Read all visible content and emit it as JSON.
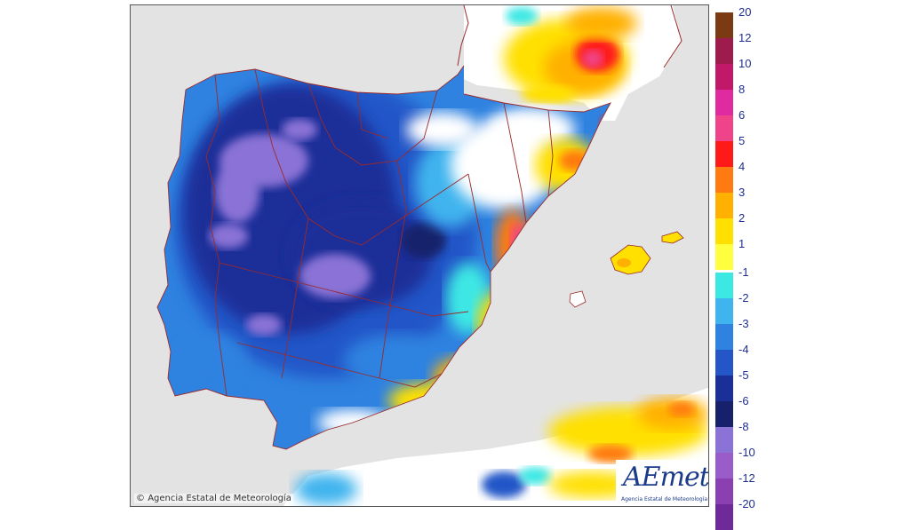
{
  "map": {
    "copyright": "Agencia Estatal de Meteorología",
    "logo_text": "AEmet",
    "logo_subtitle": "Agencia Estatal de Meteorología"
  },
  "legend": {
    "positive": [
      {
        "label": "20",
        "color": "#7b3a12"
      },
      {
        "label": "12",
        "color": "#9e1b4e"
      },
      {
        "label": "10",
        "color": "#c2186a"
      },
      {
        "label": "8",
        "color": "#e02aa0"
      },
      {
        "label": "6",
        "color": "#f0448a"
      },
      {
        "label": "5",
        "color": "#ff1a1a"
      },
      {
        "label": "4",
        "color": "#ff7a10"
      },
      {
        "label": "3",
        "color": "#ffb000"
      },
      {
        "label": "2",
        "color": "#ffe000"
      },
      {
        "label": "1",
        "color": "#ffff40"
      }
    ],
    "negative": [
      {
        "label": "-1",
        "color": "#3ce8e4"
      },
      {
        "label": "-2",
        "color": "#40b4ee"
      },
      {
        "label": "-3",
        "color": "#2f82e0"
      },
      {
        "label": "-4",
        "color": "#2456c8"
      },
      {
        "label": "-5",
        "color": "#1a2f98"
      },
      {
        "label": "-6",
        "color": "#17206a"
      },
      {
        "label": "-8",
        "color": "#8a72d6"
      },
      {
        "label": "-10",
        "color": "#9a5cc8"
      },
      {
        "label": "-12",
        "color": "#8a40b0"
      },
      {
        "label": "-20",
        "color": "#6e2a98"
      }
    ]
  }
}
